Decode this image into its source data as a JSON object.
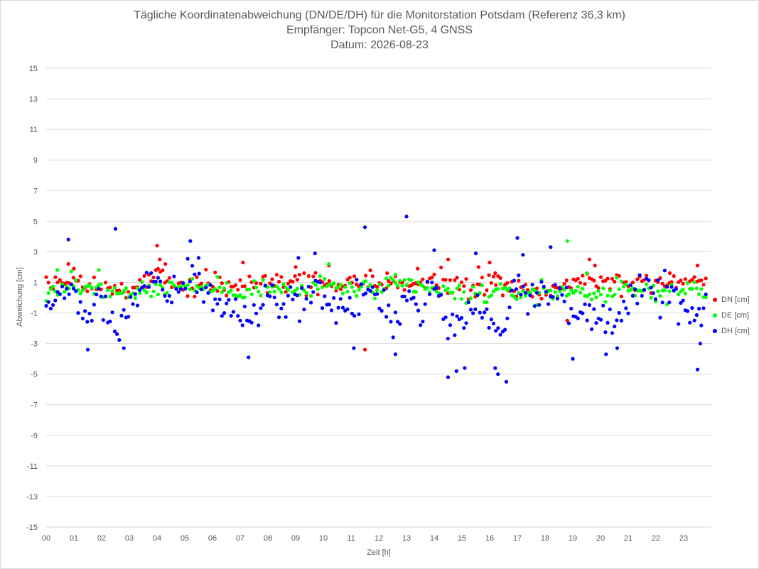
{
  "chart_data": {
    "type": "scatter",
    "title": "Tägliche Koordinatenabweichung (DN/DE/DH) für die Monitorstation Potsdam (Referenz 36,3 km)",
    "subtitle_lines": [
      "Empfänger: Topcon Net-G5, 4 GNSS",
      "Datum: 2026-08-23"
    ],
    "xlabel": "Zeit [h]",
    "ylabel": "Abweichung [cm]",
    "xlim": [
      0,
      24
    ],
    "ylim": [
      -15,
      15
    ],
    "x_ticks": [
      "00",
      "01",
      "02",
      "03",
      "04",
      "05",
      "06",
      "07",
      "08",
      "09",
      "10",
      "11",
      "12",
      "13",
      "14",
      "15",
      "16",
      "17",
      "18",
      "19",
      "20",
      "21",
      "22",
      "23"
    ],
    "y_ticks": [
      15,
      13,
      11,
      9,
      7,
      5,
      3,
      1,
      -1,
      -3,
      -5,
      -7,
      -9,
      -11,
      -13,
      -15
    ],
    "grid": true,
    "legend_position": "right",
    "series": [
      {
        "name": "DN [cm]",
        "color": "#ff0000",
        "trend": [
          [
            0,
            1.0
          ],
          [
            1,
            1.2
          ],
          [
            2,
            0.6
          ],
          [
            3,
            0.4
          ],
          [
            4,
            1.5
          ],
          [
            5,
            0.8
          ],
          [
            6,
            1.0
          ],
          [
            7,
            0.7
          ],
          [
            8,
            0.9
          ],
          [
            9,
            1.0
          ],
          [
            10,
            1.1
          ],
          [
            11,
            0.9
          ],
          [
            12,
            0.8
          ],
          [
            13,
            0.9
          ],
          [
            14,
            1.0
          ],
          [
            15,
            0.9
          ],
          [
            16,
            0.8
          ],
          [
            17,
            0.7
          ],
          [
            18,
            0.5
          ],
          [
            19,
            0.9
          ],
          [
            20,
            1.1
          ],
          [
            21,
            1.0
          ],
          [
            22,
            0.9
          ],
          [
            23,
            1.0
          ],
          [
            23.8,
            1.1
          ]
        ],
        "spread": 0.7,
        "outliers": [
          [
            0.8,
            2.2
          ],
          [
            1.0,
            1.9
          ],
          [
            4.0,
            3.4
          ],
          [
            4.1,
            2.5
          ],
          [
            4.3,
            2.2
          ],
          [
            7.1,
            2.3
          ],
          [
            9.0,
            2.0
          ],
          [
            10.2,
            2.1
          ],
          [
            11.5,
            -3.4
          ],
          [
            12.3,
            1.6
          ],
          [
            13.4,
            1.9
          ],
          [
            14.5,
            2.5
          ],
          [
            15.6,
            2.0
          ],
          [
            16.0,
            2.3
          ],
          [
            16.2,
            1.6
          ],
          [
            18.8,
            -1.5
          ],
          [
            19.6,
            2.5
          ],
          [
            19.8,
            2.1
          ],
          [
            22.5,
            1.6
          ],
          [
            23.5,
            2.1
          ]
        ]
      },
      {
        "name": "DE [cm]",
        "color": "#00ff00",
        "trend": [
          [
            0,
            0.3
          ],
          [
            1,
            0.9
          ],
          [
            2,
            0.5
          ],
          [
            3,
            0.4
          ],
          [
            4,
            0.6
          ],
          [
            5,
            0.8
          ],
          [
            6,
            0.6
          ],
          [
            7,
            0.5
          ],
          [
            8,
            0.6
          ],
          [
            9,
            0.4
          ],
          [
            10,
            0.8
          ],
          [
            11,
            0.6
          ],
          [
            12,
            0.5
          ],
          [
            13,
            0.8
          ],
          [
            14,
            0.5
          ],
          [
            15,
            0.1
          ],
          [
            16,
            0.3
          ],
          [
            17,
            0.3
          ],
          [
            18,
            0.4
          ],
          [
            19,
            0.4
          ],
          [
            20,
            0.3
          ],
          [
            21,
            0.5
          ],
          [
            22,
            0.4
          ],
          [
            23,
            0.5
          ],
          [
            23.8,
            0.4
          ]
        ],
        "spread": 0.6,
        "outliers": [
          [
            0.4,
            1.8
          ],
          [
            1.9,
            1.8
          ],
          [
            10.2,
            2.2
          ],
          [
            12.6,
            1.5
          ],
          [
            18.8,
            3.7
          ],
          [
            19.5,
            1.6
          ]
        ]
      },
      {
        "name": "DH [cm]",
        "color": "#0000ff",
        "trend": [
          [
            0,
            -0.5
          ],
          [
            1,
            0.5
          ],
          [
            1.5,
            -1.5
          ],
          [
            2,
            0.0
          ],
          [
            2.5,
            -2.0
          ],
          [
            3,
            -0.5
          ],
          [
            3.5,
            0.5
          ],
          [
            4,
            0.8
          ],
          [
            4.5,
            -0.3
          ],
          [
            5,
            1.5
          ],
          [
            5.5,
            1.2
          ],
          [
            6,
            0.0
          ],
          [
            6.5,
            -0.8
          ],
          [
            7,
            -1.0
          ],
          [
            7.5,
            -1.5
          ],
          [
            8,
            0.5
          ],
          [
            8.5,
            -0.5
          ],
          [
            9,
            0.0
          ],
          [
            9.5,
            0.0
          ],
          [
            10,
            0.5
          ],
          [
            10.5,
            -1.0
          ],
          [
            11,
            -0.5
          ],
          [
            11.5,
            0.5
          ],
          [
            12,
            -0.5
          ],
          [
            12.5,
            -1.5
          ],
          [
            13,
            0.5
          ],
          [
            13.5,
            -1.0
          ],
          [
            14,
            0.8
          ],
          [
            14.5,
            -2.0
          ],
          [
            15,
            -1.5
          ],
          [
            15.5,
            -0.5
          ],
          [
            16,
            -1.5
          ],
          [
            16.5,
            -2.0
          ],
          [
            17,
            1.5
          ],
          [
            17.5,
            0.0
          ],
          [
            18,
            0.8
          ],
          [
            18.5,
            0.5
          ],
          [
            19,
            -1.5
          ],
          [
            19.5,
            -1.0
          ],
          [
            20,
            -1.5
          ],
          [
            20.5,
            -1.0
          ],
          [
            21,
            -0.5
          ],
          [
            21.5,
            0.5
          ],
          [
            22,
            0.0
          ],
          [
            22.5,
            0.5
          ],
          [
            23,
            -1.0
          ],
          [
            23.5,
            -1.5
          ],
          [
            23.8,
            -1.0
          ]
        ],
        "spread": 1.2,
        "outliers": [
          [
            0.8,
            3.8
          ],
          [
            1.5,
            -3.4
          ],
          [
            2.5,
            4.5
          ],
          [
            2.8,
            -3.3
          ],
          [
            5.2,
            3.7
          ],
          [
            5.5,
            2.6
          ],
          [
            7.3,
            -3.9
          ],
          [
            9.1,
            2.6
          ],
          [
            9.7,
            2.9
          ],
          [
            11.1,
            -3.3
          ],
          [
            11.5,
            4.6
          ],
          [
            13.0,
            5.3
          ],
          [
            12.6,
            -3.7
          ],
          [
            14.0,
            3.1
          ],
          [
            14.5,
            -5.2
          ],
          [
            14.8,
            -4.8
          ],
          [
            15.1,
            -4.6
          ],
          [
            15.5,
            2.9
          ],
          [
            16.2,
            -4.6
          ],
          [
            16.3,
            -5.0
          ],
          [
            16.6,
            -5.5
          ],
          [
            17.0,
            3.9
          ],
          [
            17.2,
            2.8
          ],
          [
            18.2,
            3.3
          ],
          [
            19.0,
            -4.0
          ],
          [
            20.2,
            -3.7
          ],
          [
            20.6,
            -3.3
          ],
          [
            23.5,
            -4.7
          ],
          [
            23.6,
            -3.0
          ]
        ]
      }
    ]
  }
}
